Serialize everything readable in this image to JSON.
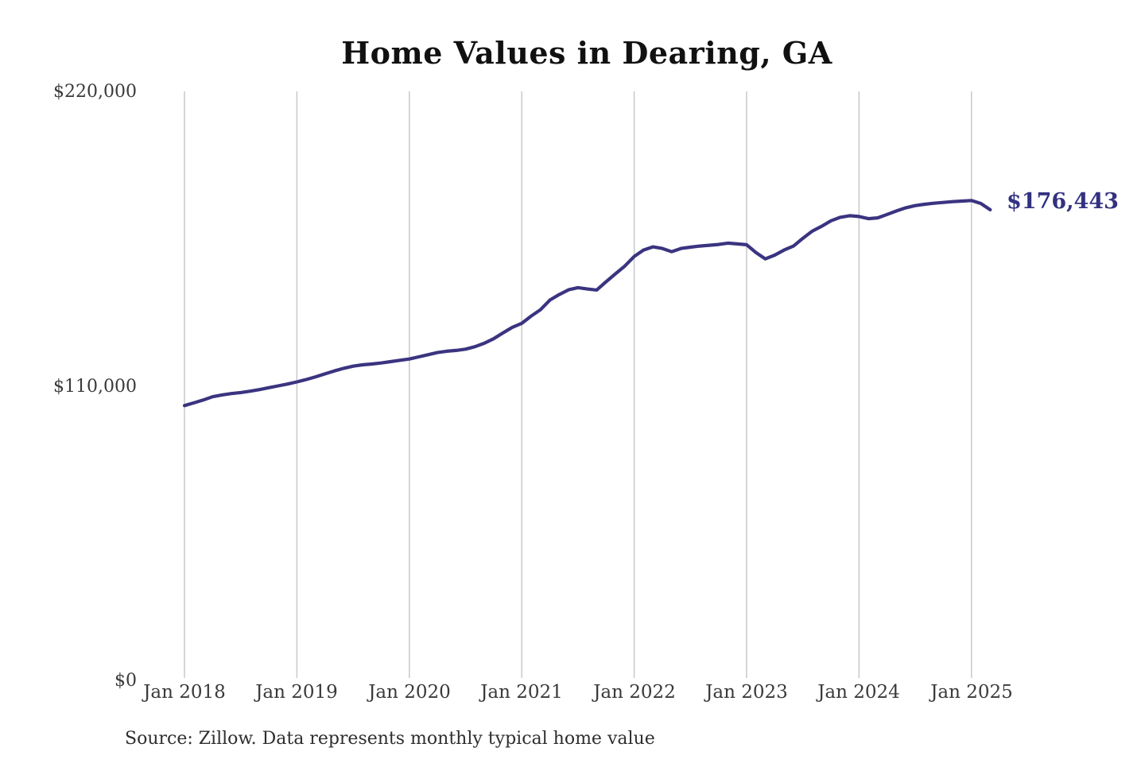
{
  "chart_data": {
    "type": "line",
    "title": "Home Values in Dearing, GA",
    "source_note": "Source: Zillow. Data represents monthly typical home value",
    "end_label": "$176,443",
    "final_value": 176443,
    "units": "USD",
    "frequency": "monthly",
    "line_color": "#3a3480",
    "grid_color": "#c9c9c9",
    "axis_text_color": "#3a3a3a",
    "ylim": [
      0,
      220000
    ],
    "y_tick_labels": [
      "$220,000",
      "$110,000",
      "$0"
    ],
    "y_tick_values": [
      220000,
      110000,
      0
    ],
    "x_tick_labels": [
      "Jan 2018",
      "Jan 2019",
      "Jan 2020",
      "Jan 2021",
      "Jan 2022",
      "Jan 2023",
      "Jan 2024",
      "Jan 2025"
    ],
    "grid": "vertical-only",
    "legend": "none",
    "x": [
      "2018-01",
      "2018-02",
      "2018-03",
      "2018-04",
      "2018-05",
      "2018-06",
      "2018-07",
      "2018-08",
      "2018-09",
      "2018-10",
      "2018-11",
      "2018-12",
      "2019-01",
      "2019-02",
      "2019-03",
      "2019-04",
      "2019-05",
      "2019-06",
      "2019-07",
      "2019-08",
      "2019-09",
      "2019-10",
      "2019-11",
      "2019-12",
      "2020-01",
      "2020-02",
      "2020-03",
      "2020-04",
      "2020-05",
      "2020-06",
      "2020-07",
      "2020-08",
      "2020-09",
      "2020-10",
      "2020-11",
      "2020-12",
      "2021-01",
      "2021-02",
      "2021-03",
      "2021-04",
      "2021-05",
      "2021-06",
      "2021-07",
      "2021-08",
      "2021-09",
      "2021-10",
      "2021-11",
      "2021-12",
      "2022-01",
      "2022-02",
      "2022-03",
      "2022-04",
      "2022-05",
      "2022-06",
      "2022-07",
      "2022-08",
      "2022-09",
      "2022-10",
      "2022-11",
      "2022-12",
      "2023-01",
      "2023-02",
      "2023-03",
      "2023-04",
      "2023-05",
      "2023-06",
      "2023-07",
      "2023-08",
      "2023-09",
      "2023-10",
      "2023-11",
      "2023-12",
      "2024-01",
      "2024-02",
      "2024-03",
      "2024-04",
      "2024-05",
      "2024-06",
      "2024-07",
      "2024-08",
      "2024-09",
      "2024-10",
      "2024-11",
      "2024-12",
      "2025-01",
      "2025-02",
      "2025-03"
    ],
    "values": [
      102900,
      103900,
      105000,
      106200,
      106900,
      107400,
      107800,
      108300,
      108900,
      109600,
      110300,
      111000,
      111800,
      112700,
      113700,
      114800,
      115900,
      116900,
      117700,
      118200,
      118500,
      118900,
      119400,
      119900,
      120400,
      121200,
      122000,
      122800,
      123300,
      123600,
      124100,
      125000,
      126300,
      128000,
      130200,
      132300,
      133800,
      136500,
      138900,
      142500,
      144600,
      146400,
      147200,
      146700,
      146300,
      149400,
      152400,
      155300,
      158900,
      161300,
      162500,
      161900,
      160700,
      161900,
      162400,
      162800,
      163100,
      163400,
      163900,
      163600,
      163300,
      160400,
      158000,
      159400,
      161300,
      162800,
      165700,
      168400,
      170200,
      172300,
      173600,
      174200,
      173900,
      173100,
      173400,
      174700,
      176000,
      177200,
      178000,
      178500,
      178900,
      179200,
      179500,
      179700,
      179900,
      178800,
      176443
    ]
  }
}
